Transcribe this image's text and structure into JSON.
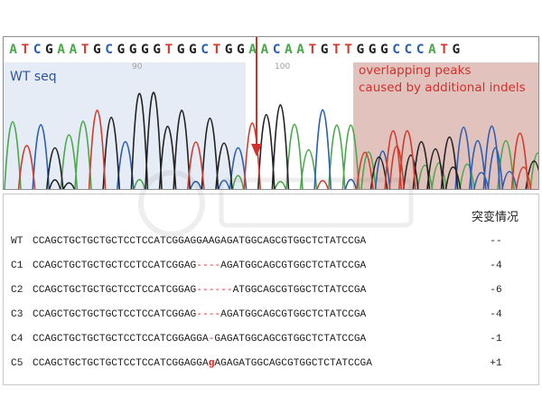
{
  "chromatogram": {
    "bases": [
      "A",
      "T",
      "C",
      "G",
      "A",
      "A",
      "T",
      "G",
      "C",
      "G",
      "G",
      "G",
      "G",
      "T",
      "G",
      "G",
      "C",
      "T",
      "G",
      "G",
      "A",
      "A",
      "C",
      "A",
      "A",
      "T",
      "G",
      "T",
      "T",
      "G",
      "G",
      "G",
      "C",
      "C",
      "C",
      "A",
      "T",
      "G"
    ],
    "base_colors": {
      "A": "#4aa84a",
      "T": "#d23a2e",
      "C": "#2b5fb4",
      "G": "#222222"
    },
    "position_labels": [
      "90",
      "100"
    ],
    "wt_label": "WT seq",
    "overlap_label_line1": "overlapping peaks",
    "overlap_label_line2": "caused by additional indels"
  },
  "alignment": {
    "column_header": "突变情况",
    "rows": [
      {
        "sample": "WT",
        "parts": [
          {
            "t": "CCAGCTGCTGCTGCTCCTCCATCGGAGGAAGAGATGGCAGCGTGGCTCTATCCGA",
            "c": ""
          }
        ],
        "mutation": "--"
      },
      {
        "sample": "C1",
        "parts": [
          {
            "t": "CCAGCTGCTGCTGCTCCTCCATCGGAG",
            "c": ""
          },
          {
            "t": "----",
            "c": "red"
          },
          {
            "t": "AGATGGCAGCGTGGCTCTATCCGA",
            "c": ""
          }
        ],
        "mutation": "-4"
      },
      {
        "sample": "C2",
        "parts": [
          {
            "t": "CCAGCTGCTGCTGCTCCTCCATCGGAG",
            "c": ""
          },
          {
            "t": "------",
            "c": "red"
          },
          {
            "t": "ATGGCAGCGTGGCTCTATCCGA",
            "c": ""
          }
        ],
        "mutation": "-6"
      },
      {
        "sample": "C3",
        "parts": [
          {
            "t": "CCAGCTGCTGCTGCTCCTCCATCGGAG",
            "c": ""
          },
          {
            "t": "----",
            "c": "red"
          },
          {
            "t": "AGATGGCAGCGTGGCTCTATCCGA",
            "c": ""
          }
        ],
        "mutation": "-4"
      },
      {
        "sample": "C4",
        "parts": [
          {
            "t": "CCAGCTGCTGCTGCTCCTCCATCGGAGGA",
            "c": ""
          },
          {
            "t": "-",
            "c": "red"
          },
          {
            "t": "GAGATGGCAGCGTGGCTCTATCCGA",
            "c": ""
          }
        ],
        "mutation": "-1"
      },
      {
        "sample": "C5",
        "parts": [
          {
            "t": "CCAGCTGCTGCTGCTCCTCCATCGGAGGA",
            "c": ""
          },
          {
            "t": "g",
            "c": "ins"
          },
          {
            "t": "AGAGATGGCAGCGTGGCTCTATCCGA",
            "c": ""
          }
        ],
        "mutation": "+1"
      }
    ]
  },
  "colors": {
    "arrow": "#d0312d",
    "wt_region": "#e6ecf6",
    "overlap_region": "#e2c2bc"
  }
}
